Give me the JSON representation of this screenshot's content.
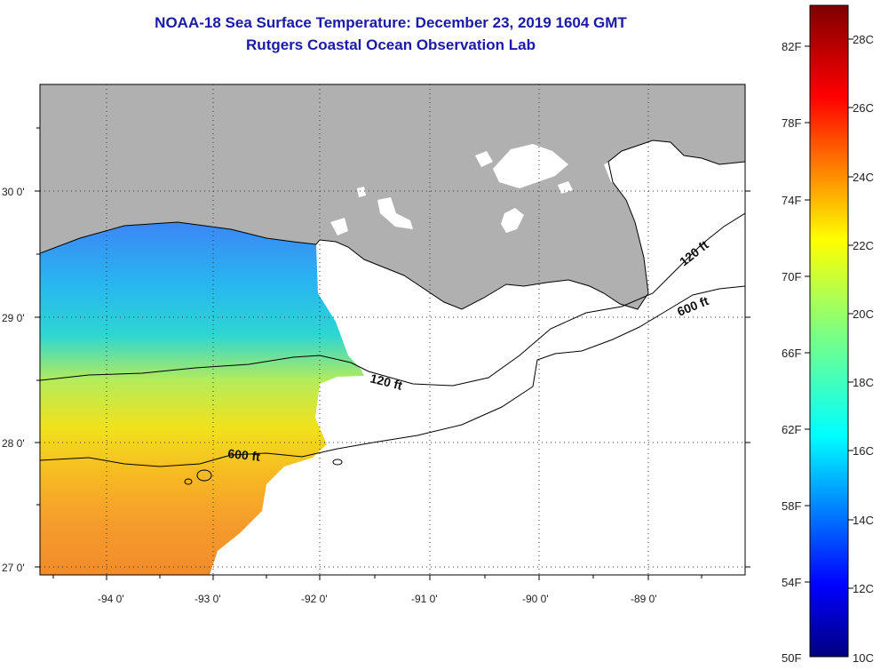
{
  "title": "NOAA-18 Sea Surface Temperature:  December 23, 2019 1604 GMT",
  "subtitle": "Rutgers Coastal Ocean Observation Lab",
  "map": {
    "lon_ticks": [
      "-94 0'",
      "-93 0'",
      "-92 0'",
      "-91 0'",
      "-90 0'",
      "-89 0'"
    ],
    "lat_ticks": [
      "30 0'",
      "29 0'",
      "28 0'",
      "27 0'"
    ],
    "contour_labels": [
      "120 ft",
      "600 ft",
      "120 ft",
      "600 ft"
    ],
    "colors": {
      "land": "#b0b0b0",
      "ocean_cloud": "#ffffff",
      "frame": "#000000"
    }
  },
  "colorbar": {
    "f_labels": [
      "82F",
      "78F",
      "74F",
      "70F",
      "66F",
      "62F",
      "58F",
      "54F",
      "50F"
    ],
    "c_labels": [
      "28C",
      "26C",
      "24C",
      "22C",
      "20C",
      "18C",
      "16C",
      "14C",
      "12C",
      "10C"
    ],
    "colors": [
      "#00007f",
      "#0000ff",
      "#007fff",
      "#00ffff",
      "#7fff7f",
      "#ffff00",
      "#ff7f00",
      "#ff0000",
      "#7f0000"
    ]
  }
}
